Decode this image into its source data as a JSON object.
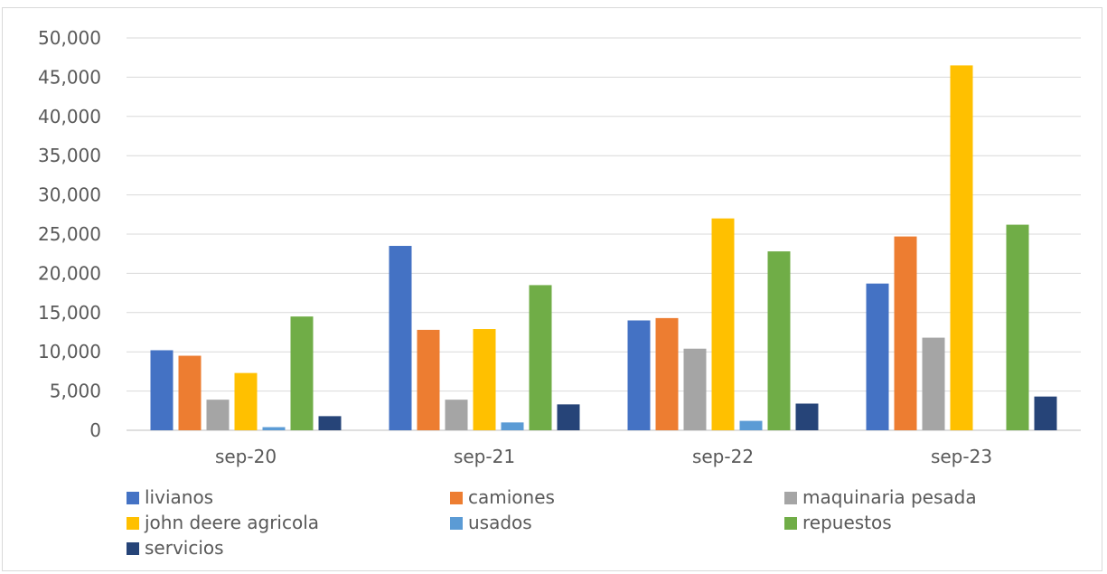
{
  "chart_data": {
    "type": "bar",
    "title": "",
    "xlabel": "",
    "ylabel": "",
    "categories": [
      "sep-20",
      "sep-21",
      "sep-22",
      "sep-23"
    ],
    "ylim": [
      0,
      50000
    ],
    "yticks": [
      "0",
      "5,000",
      "10,000",
      "15,000",
      "20,000",
      "25,000",
      "30,000",
      "35,000",
      "40,000",
      "45,000",
      "50,000"
    ],
    "grid": true,
    "legend_position": "bottom",
    "series": [
      {
        "name": "livianos",
        "color": "#4472c4",
        "values": [
          10200,
          23500,
          14000,
          18700
        ]
      },
      {
        "name": "camiones",
        "color": "#ed7d31",
        "values": [
          9500,
          12800,
          14300,
          24700
        ]
      },
      {
        "name": "maquinaria pesada",
        "color": "#a5a5a5",
        "values": [
          3900,
          3900,
          10400,
          11800
        ]
      },
      {
        "name": "john deere agricola",
        "color": "#ffc000",
        "values": [
          7300,
          12900,
          27000,
          46500
        ]
      },
      {
        "name": "usados",
        "color": "#5b9bd5",
        "values": [
          400,
          1000,
          1200,
          0
        ]
      },
      {
        "name": "repuestos",
        "color": "#70ad47",
        "values": [
          14500,
          18500,
          22800,
          26200
        ]
      },
      {
        "name": "servicios",
        "color": "#264478",
        "values": [
          1800,
          3300,
          3400,
          4300
        ]
      }
    ]
  }
}
